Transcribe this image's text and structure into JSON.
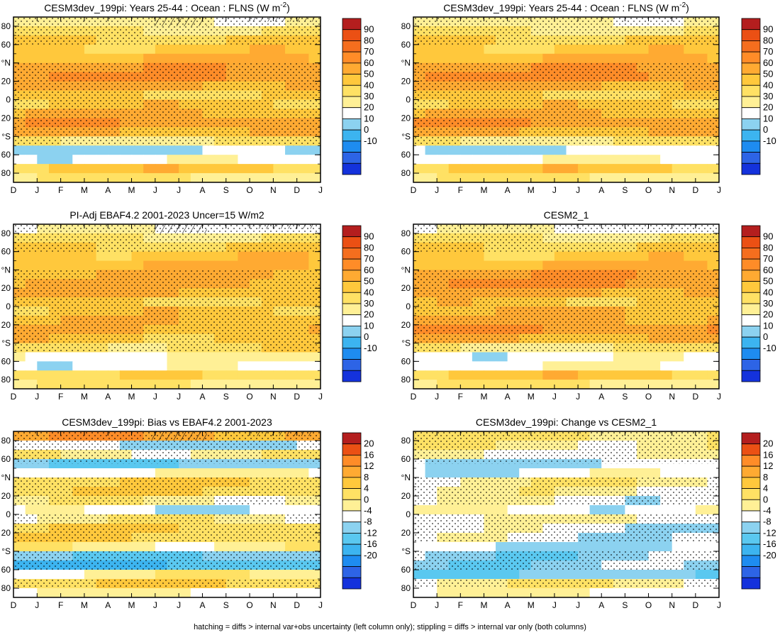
{
  "footnote": "hatching = diffs > internal var+obs uncertainty (left column only); stippling = diffs > internal var only (both columns)",
  "colors": {
    "blue_dark": "#1432dc",
    "blue_mid": "#2d64e6",
    "blue": "#1e8cf0",
    "blue_light": "#3cb4f0",
    "cyan": "#5ac8f0",
    "sky": "#8cd2f0",
    "white": "#ffffff",
    "yellow_pale": "#fff096",
    "yellow": "#ffe164",
    "gold": "#ffc83c",
    "orange_light": "#ffaa32",
    "orange": "#ff8c28",
    "orange_dark": "#f56e1e",
    "red_orange": "#eb5014",
    "red": "#d7281e",
    "red_dark": "#b41e1e"
  },
  "panels": [
    {
      "title": "CESM3dev_199pi: Years 25-44 : Ocean : FLNS (W m",
      "title_sup": "-2",
      "title_end": ")",
      "scale": "abs",
      "lat_pattern": "model",
      "hatch": true
    },
    {
      "title": "CESM3dev_199pi: Years 25-44 : Ocean : FLNS (W m",
      "title_sup": "-2",
      "title_end": ")",
      "scale": "abs",
      "lat_pattern": "model2",
      "hatch": false
    },
    {
      "title": "PI-Adj EBAF4.2 2001-2023 Uncer=15 W/m2",
      "title_sup": "",
      "title_end": "",
      "scale": "abs",
      "lat_pattern": "obs",
      "hatch": true
    },
    {
      "title": "CESM2_1",
      "title_sup": "",
      "title_end": "",
      "scale": "abs",
      "lat_pattern": "cesm2",
      "hatch": false
    },
    {
      "title": "CESM3dev_199pi: Bias vs EBAF4.2 2001-2023",
      "title_sup": "",
      "title_end": "",
      "scale": "diff",
      "lat_pattern": "bias",
      "hatch": true
    },
    {
      "title": "CESM3dev_199pi: Change vs CESM2_1",
      "title_sup": "",
      "title_end": "",
      "scale": "diff",
      "lat_pattern": "change",
      "hatch": false
    }
  ],
  "chart_data": [
    {
      "type": "heatmap",
      "title": "CESM3dev_199pi: Years 25-44 : Ocean : FLNS (W m-2)",
      "x_ticks": [
        "D",
        "J",
        "F",
        "M",
        "A",
        "M",
        "J",
        "J",
        "A",
        "S",
        "O",
        "N",
        "D",
        "J"
      ],
      "y_ticks": [
        "80",
        "60",
        "°N",
        "20",
        "0",
        "20",
        "°S",
        "60",
        "80"
      ],
      "ylim": [
        -90,
        90
      ],
      "colorbar": [
        -10,
        0,
        10,
        20,
        30,
        40,
        50,
        60,
        70,
        80,
        90
      ],
      "zonal_profile_lat": [
        85,
        75,
        65,
        55,
        45,
        35,
        25,
        15,
        5,
        -5,
        -15,
        -25,
        -35,
        -45,
        -55,
        -65,
        -75,
        -85
      ],
      "zonal_profile_values": [
        35,
        42,
        50,
        52,
        57,
        62,
        66,
        60,
        50,
        52,
        58,
        62,
        58,
        40,
        20,
        28,
        52,
        40
      ]
    },
    {
      "type": "heatmap",
      "title": "CESM3dev_199pi: Years 25-44 : Ocean : FLNS (W m-2)",
      "x_ticks": [
        "D",
        "J",
        "F",
        "M",
        "A",
        "M",
        "J",
        "J",
        "A",
        "S",
        "O",
        "N",
        "D",
        "J"
      ],
      "y_ticks": [
        "80",
        "60",
        "°N",
        "20",
        "0",
        "20",
        "°S",
        "60",
        "80"
      ],
      "ylim": [
        -90,
        90
      ],
      "colorbar": [
        -10,
        0,
        10,
        20,
        30,
        40,
        50,
        60,
        70,
        80,
        90
      ],
      "zonal_profile_lat": [
        85,
        75,
        65,
        55,
        45,
        35,
        25,
        15,
        5,
        -5,
        -15,
        -25,
        -35,
        -45,
        -55,
        -65,
        -75,
        -85
      ],
      "zonal_profile_values": [
        35,
        40,
        50,
        52,
        57,
        63,
        68,
        60,
        50,
        52,
        58,
        63,
        58,
        40,
        24,
        30,
        52,
        40
      ]
    },
    {
      "type": "heatmap",
      "title": "PI-Adj EBAF4.2 2001-2023 Uncer=15 W/m2",
      "x_ticks": [
        "D",
        "J",
        "F",
        "M",
        "A",
        "M",
        "J",
        "J",
        "A",
        "S",
        "O",
        "N",
        "D",
        "J"
      ],
      "y_ticks": [
        "80",
        "60",
        "°N",
        "20",
        "0",
        "20",
        "°S",
        "60",
        "80"
      ],
      "ylim": [
        -90,
        90
      ],
      "colorbar": [
        -10,
        0,
        10,
        20,
        30,
        40,
        50,
        60,
        70,
        80,
        90
      ],
      "zonal_profile_lat": [
        85,
        75,
        65,
        55,
        45,
        35,
        25,
        15,
        5,
        -5,
        -15,
        -25,
        -35,
        -45,
        -55,
        -65,
        -75,
        -85
      ],
      "zonal_profile_values": [
        30,
        42,
        50,
        53,
        57,
        58,
        60,
        57,
        50,
        52,
        55,
        56,
        52,
        44,
        32,
        28,
        45,
        40
      ]
    },
    {
      "type": "heatmap",
      "title": "CESM2_1",
      "x_ticks": [
        "D",
        "J",
        "F",
        "M",
        "A",
        "M",
        "J",
        "J",
        "A",
        "S",
        "O",
        "N",
        "D",
        "J"
      ],
      "y_ticks": [
        "80",
        "60",
        "°N",
        "20",
        "0",
        "20",
        "°S",
        "60",
        "80"
      ],
      "ylim": [
        -90,
        90
      ],
      "colorbar": [
        -10,
        0,
        10,
        20,
        30,
        40,
        50,
        60,
        70,
        80,
        90
      ],
      "zonal_profile_lat": [
        85,
        75,
        65,
        55,
        45,
        35,
        25,
        15,
        5,
        -5,
        -15,
        -25,
        -35,
        -45,
        -55,
        -65,
        -75,
        -85
      ],
      "zonal_profile_values": [
        30,
        42,
        48,
        52,
        57,
        63,
        66,
        60,
        52,
        55,
        60,
        64,
        58,
        40,
        28,
        30,
        52,
        40
      ]
    },
    {
      "type": "heatmap",
      "title": "CESM3dev_199pi: Bias vs EBAF4.2 2001-2023",
      "x_ticks": [
        "D",
        "J",
        "F",
        "M",
        "A",
        "M",
        "J",
        "J",
        "A",
        "S",
        "O",
        "N",
        "D",
        "J"
      ],
      "y_ticks": [
        "80",
        "60",
        "°N",
        "20",
        "0",
        "20",
        "°S",
        "60",
        "80"
      ],
      "ylim": [
        -90,
        90
      ],
      "colorbar": [
        -20,
        -16,
        -12,
        -8,
        -4,
        0,
        4,
        8,
        12,
        16,
        20
      ],
      "zonal_profile_lat": [
        85,
        75,
        65,
        55,
        45,
        35,
        25,
        15,
        5,
        -5,
        -15,
        -25,
        -35,
        -45,
        -55,
        -65,
        -75,
        -85
      ],
      "zonal_profile_values": [
        12,
        -4,
        2,
        -6,
        0,
        6,
        6,
        2,
        -2,
        2,
        6,
        6,
        2,
        -6,
        -10,
        2,
        6,
        0
      ]
    },
    {
      "type": "heatmap",
      "title": "CESM3dev_199pi: Change vs CESM2_1",
      "x_ticks": [
        "D",
        "J",
        "F",
        "M",
        "A",
        "M",
        "J",
        "J",
        "A",
        "S",
        "O",
        "N",
        "D",
        "J"
      ],
      "y_ticks": [
        "80",
        "60",
        "°N",
        "20",
        "0",
        "20",
        "°S",
        "60",
        "80"
      ],
      "ylim": [
        -90,
        90
      ],
      "colorbar": [
        -20,
        -16,
        -12,
        -8,
        -4,
        0,
        4,
        8,
        12,
        16,
        20
      ],
      "zonal_profile_lat": [
        85,
        75,
        65,
        55,
        45,
        35,
        25,
        15,
        5,
        -5,
        -15,
        -25,
        -35,
        -45,
        -55,
        -65,
        -75,
        -85
      ],
      "zonal_profile_values": [
        4,
        2,
        0,
        -4,
        -2,
        2,
        1,
        -1,
        -1,
        0,
        -2,
        -2,
        -4,
        -5,
        -5,
        -6,
        2,
        0
      ]
    }
  ]
}
